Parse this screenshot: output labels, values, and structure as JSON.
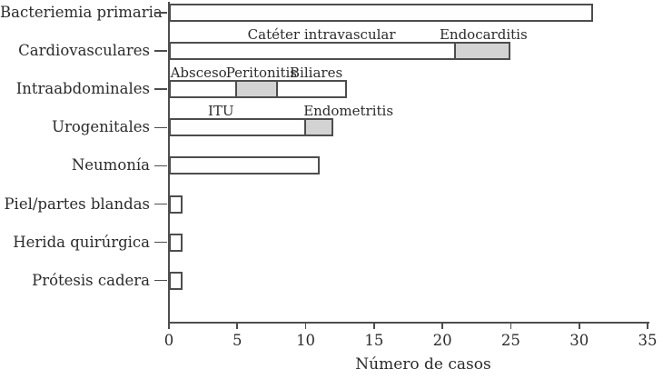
{
  "figure": {
    "background": "#ffffff",
    "text_color": "#2b2b2b",
    "axis_color": "#4d4d4d",
    "bar_border_color": "#4d4d4d",
    "bar_fill_white": "#fefefe",
    "bar_fill_gray": "#d3d3d3"
  },
  "chart_data": {
    "type": "bar",
    "orientation": "horizontal",
    "stacked": true,
    "title": "",
    "xlabel": "Número de casos",
    "ylabel": "",
    "xlim": [
      0,
      35
    ],
    "xticks": [
      0,
      5,
      10,
      15,
      20,
      25,
      30,
      35
    ],
    "grid": false,
    "legend": "none",
    "categories": [
      "Bacteriemia primaria",
      "Cardiovasculares",
      "Intraabdominales",
      "Urogenitales",
      "Neumonía",
      "Piel/partes blandas",
      "Herida quirúrgica",
      "Prótesis cadera"
    ],
    "rows": [
      {
        "category": "Bacteriemia primaria",
        "total": 31,
        "segments": [
          {
            "label": "",
            "value": 31,
            "fill": "white"
          }
        ]
      },
      {
        "category": "Cardiovasculares",
        "total": 25,
        "segments": [
          {
            "label": "Catéter intravascular",
            "value": 21,
            "fill": "white",
            "label_dx": 10
          },
          {
            "label": "Endocarditis",
            "value": 4,
            "fill": "gray",
            "label_dx": 0
          }
        ]
      },
      {
        "category": "Intraabdominales",
        "total": 13,
        "segments": [
          {
            "label": "Absceso",
            "value": 5,
            "fill": "white",
            "label_dx": -5
          },
          {
            "label": "Peritonitis",
            "value": 3,
            "fill": "gray",
            "label_dx": 4
          },
          {
            "label": "Biliares",
            "value": 5,
            "fill": "white",
            "label_dx": 4
          }
        ]
      },
      {
        "category": "Urogenitales",
        "total": 12,
        "segments": [
          {
            "label": "ITU",
            "value": 10,
            "fill": "white",
            "label_dx": -18
          },
          {
            "label": "Endometritis",
            "value": 2,
            "fill": "gray",
            "label_dx": 32
          }
        ]
      },
      {
        "category": "Neumonía",
        "total": 11,
        "segments": [
          {
            "label": "",
            "value": 11,
            "fill": "white"
          }
        ]
      },
      {
        "category": "Piel/partes blandas",
        "total": 1,
        "segments": [
          {
            "label": "",
            "value": 1,
            "fill": "white"
          }
        ]
      },
      {
        "category": "Herida quirúrgica",
        "total": 1,
        "segments": [
          {
            "label": "",
            "value": 1,
            "fill": "white"
          }
        ]
      },
      {
        "category": "Prótesis cadera",
        "total": 1,
        "segments": [
          {
            "label": "",
            "value": 1,
            "fill": "white"
          }
        ]
      }
    ]
  }
}
